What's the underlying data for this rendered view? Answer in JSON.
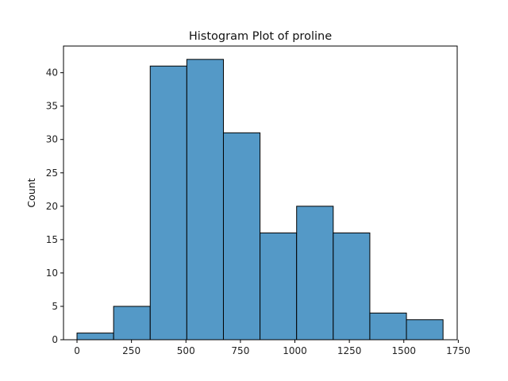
{
  "chart_data": {
    "type": "bar",
    "title": "Histogram Plot of proline",
    "xlabel": "",
    "ylabel": "Count",
    "xlim": [
      -62,
      1745
    ],
    "ylim": [
      0,
      44
    ],
    "x_ticks": [
      "0",
      "250",
      "500",
      "750",
      "1000",
      "1250",
      "1500",
      "1750"
    ],
    "y_ticks": [
      "0",
      "5",
      "10",
      "15",
      "20",
      "25",
      "30",
      "35",
      "40"
    ],
    "bin_edges": [
      0,
      168,
      336,
      504,
      672,
      840,
      1008,
      1176,
      1344,
      1512,
      1680
    ],
    "values": [
      1,
      5,
      41,
      42,
      31,
      16,
      20,
      16,
      4,
      3
    ],
    "bar_color": "#5499c7",
    "edge_color": "#000000",
    "grid": false,
    "legend": "none"
  }
}
